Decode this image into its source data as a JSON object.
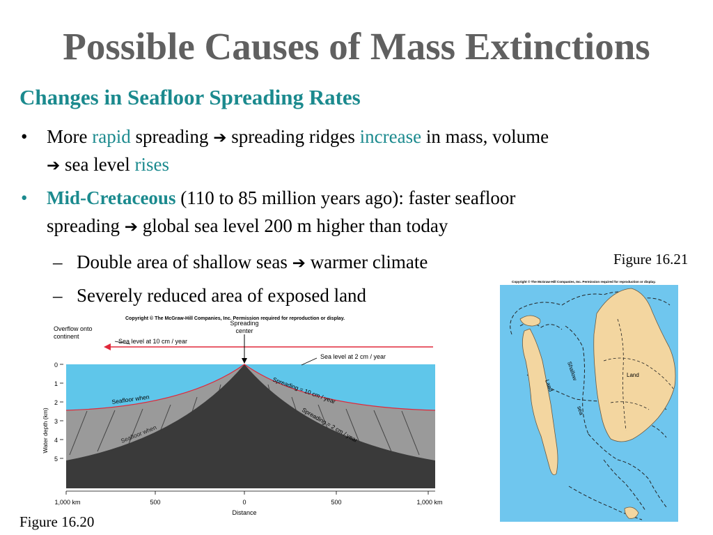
{
  "slide": {
    "title": "Possible Causes of Mass Extinctions",
    "subtitle": "Changes in Seafloor Spreading Rates"
  },
  "bullet1": {
    "marker": "•",
    "line1": {
      "t1": "More ",
      "t2": "rapid",
      "t3": " spreading ",
      "arrow": "➔",
      "t4": " spreading ridges ",
      "t5": "increase",
      "t6": " in mass, volume"
    },
    "line2": {
      "arrow": "➔",
      "t1": " sea level ",
      "t2": "rises"
    }
  },
  "bullet2": {
    "marker": "•",
    "line1": {
      "bold": "Mid-Cretaceous",
      "rest": " (110 to 85 million years ago): faster seafloor"
    },
    "line2": {
      "t1": "spreading ",
      "arrow": "➔",
      "t2": " global sea level 200 m higher than today"
    }
  },
  "sub_bullets": [
    {
      "dash": "–",
      "t1": "Double area of shallow seas ",
      "arrow": "➔",
      "t2": " warmer climate"
    },
    {
      "dash": "–",
      "t1": "Severely reduced area of exposed land"
    }
  ],
  "captions": {
    "figure_map": "Figure 16.21",
    "figure_profile": "Figure 16.20"
  },
  "figure_profile": {
    "copyright": "Copyright © The McGraw-Hill Companies, Inc. Permission required for reproduction or display.",
    "overflow_label_1": "Overflow onto",
    "overflow_label_2": "continent",
    "center_label_1": "Spreading",
    "center_label_2": "center",
    "sea_level_fast": "Sea level at 10 cm / year",
    "sea_level_slow": "Sea level at 2 cm / year",
    "seafloor_when_1": "Seafloor when",
    "seafloor_when_2": "Seafloor when",
    "spreading_fast": "Spreading = 10 cm / year",
    "spreading_slow": "Spreading = 2 cm / year",
    "y_axis_label": "Water depth (km)",
    "y_ticks": [
      "0",
      "1",
      "2",
      "3",
      "4",
      "5"
    ],
    "x_ticks": [
      "1,000 km",
      "500",
      "0",
      "500",
      "1,000 km"
    ],
    "x_axis_label": "Distance",
    "colors": {
      "water": "#5fc6ea",
      "seafloor": "#3a3a3a",
      "sea_level_line": "#e0283a"
    }
  },
  "figure_map": {
    "copyright": "Copyright © The McGraw-Hill Companies, Inc. Permission required for reproduction or display.",
    "land_west": "Land",
    "shallow": "Shallow",
    "sea": "sea",
    "land_east": "Land",
    "colors": {
      "ocean": "#6fc6ee",
      "land": "#f3d6a0"
    }
  }
}
